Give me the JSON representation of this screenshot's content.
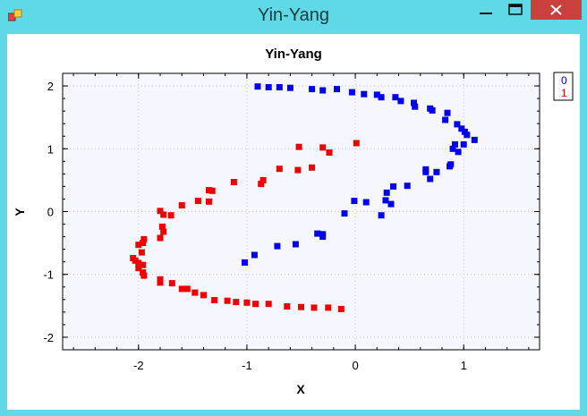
{
  "window": {
    "title": "Yin-Yang",
    "accent_color": "#5fd9e6",
    "close_color": "#c9403c"
  },
  "chart_data": {
    "type": "scatter",
    "title": "Yin-Yang",
    "xlabel": "X",
    "ylabel": "Y",
    "xlim": [
      -2.7,
      1.7
    ],
    "ylim": [
      -2.2,
      2.2
    ],
    "x_ticks": [
      -2,
      -1,
      0,
      1
    ],
    "y_ticks": [
      -2,
      -1,
      0,
      1,
      2
    ],
    "grid": true,
    "legend_position": "top-right",
    "series": [
      {
        "name": "0",
        "color": "#0000ee",
        "points": [
          [
            -0.9,
            1.99
          ],
          [
            -0.8,
            1.98
          ],
          [
            -0.7,
            1.98
          ],
          [
            -0.6,
            1.97
          ],
          [
            -0.4,
            1.95
          ],
          [
            -0.3,
            1.93
          ],
          [
            -0.17,
            1.95
          ],
          [
            -0.03,
            1.9
          ],
          [
            0.08,
            1.87
          ],
          [
            0.2,
            1.86
          ],
          [
            0.24,
            1.82
          ],
          [
            0.37,
            1.82
          ],
          [
            0.42,
            1.76
          ],
          [
            0.54,
            1.73
          ],
          [
            0.55,
            1.67
          ],
          [
            0.69,
            1.64
          ],
          [
            0.71,
            1.61
          ],
          [
            0.85,
            1.57
          ],
          [
            0.83,
            1.46
          ],
          [
            0.94,
            1.39
          ],
          [
            0.98,
            1.32
          ],
          [
            1.01,
            1.27
          ],
          [
            1.03,
            1.22
          ],
          [
            1.1,
            1.14
          ],
          [
            0.92,
            1.07
          ],
          [
            1.0,
            1.07
          ],
          [
            0.9,
            1.0
          ],
          [
            0.95,
            0.95
          ],
          [
            0.88,
            0.75
          ],
          [
            0.87,
            0.72
          ],
          [
            0.65,
            0.67
          ],
          [
            0.75,
            0.63
          ],
          [
            0.65,
            0.63
          ],
          [
            0.69,
            0.52
          ],
          [
            0.35,
            0.4
          ],
          [
            0.48,
            0.41
          ],
          [
            0.29,
            0.3
          ],
          [
            0.28,
            0.18
          ],
          [
            -0.01,
            0.17
          ],
          [
            0.1,
            0.15
          ],
          [
            0.33,
            0.12
          ],
          [
            -0.1,
            -0.03
          ],
          [
            0.24,
            -0.06
          ],
          [
            -0.35,
            -0.35
          ],
          [
            -0.3,
            -0.36
          ],
          [
            -0.3,
            -0.4
          ],
          [
            -0.55,
            -0.52
          ],
          [
            -0.72,
            -0.55
          ],
          [
            -0.93,
            -0.69
          ],
          [
            -1.02,
            -0.81
          ]
        ]
      },
      {
        "name": "1",
        "color": "#ee0000",
        "points": [
          [
            0.01,
            1.09
          ],
          [
            -0.52,
            1.03
          ],
          [
            -0.3,
            1.02
          ],
          [
            -0.24,
            0.94
          ],
          [
            -0.4,
            0.7
          ],
          [
            -0.7,
            0.68
          ],
          [
            -0.53,
            0.66
          ],
          [
            -0.85,
            0.5
          ],
          [
            -0.87,
            0.44
          ],
          [
            -1.12,
            0.47
          ],
          [
            -1.35,
            0.34
          ],
          [
            -1.32,
            0.33
          ],
          [
            -1.45,
            0.17
          ],
          [
            -1.35,
            0.16
          ],
          [
            -1.6,
            0.1
          ],
          [
            -1.8,
            0.01
          ],
          [
            -1.77,
            -0.05
          ],
          [
            -1.7,
            -0.06
          ],
          [
            -1.78,
            -0.24
          ],
          [
            -1.77,
            -0.32
          ],
          [
            -1.8,
            -0.42
          ],
          [
            -1.95,
            -0.44
          ],
          [
            -1.96,
            -0.5
          ],
          [
            -2.0,
            -0.53
          ],
          [
            -1.97,
            -0.65
          ],
          [
            -2.05,
            -0.74
          ],
          [
            -2.03,
            -0.78
          ],
          [
            -2.0,
            -0.82
          ],
          [
            -1.96,
            -0.85
          ],
          [
            -2.0,
            -0.9
          ],
          [
            -1.96,
            -0.97
          ],
          [
            -1.95,
            -1.02
          ],
          [
            -1.8,
            -1.08
          ],
          [
            -1.8,
            -1.13
          ],
          [
            -1.69,
            -1.14
          ],
          [
            -1.6,
            -1.23
          ],
          [
            -1.55,
            -1.23
          ],
          [
            -1.48,
            -1.29
          ],
          [
            -1.4,
            -1.33
          ],
          [
            -1.3,
            -1.41
          ],
          [
            -1.18,
            -1.42
          ],
          [
            -1.1,
            -1.44
          ],
          [
            -1.0,
            -1.45
          ],
          [
            -0.92,
            -1.47
          ],
          [
            -0.8,
            -1.47
          ],
          [
            -0.63,
            -1.51
          ],
          [
            -0.5,
            -1.52
          ],
          [
            -0.38,
            -1.53
          ],
          [
            -0.25,
            -1.53
          ],
          [
            -0.13,
            -1.55
          ]
        ]
      }
    ]
  }
}
